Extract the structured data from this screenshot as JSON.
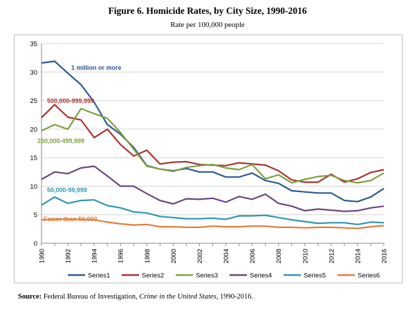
{
  "title": "Figure 6. Homicide Rates, by City Size, 1990-2016",
  "subtitle": "Rate per 100,000 people",
  "source": {
    "label": "Source:",
    "text_before": "Federal Bureau of Investigation,",
    "italic": "Crime in the United States",
    "text_after": ", 1990-2016."
  },
  "chart_data": {
    "type": "line",
    "x": [
      1990,
      1991,
      1992,
      1993,
      1994,
      1995,
      1996,
      1997,
      1998,
      1999,
      2000,
      2001,
      2002,
      2003,
      2004,
      2005,
      2006,
      2007,
      2008,
      2009,
      2010,
      2011,
      2012,
      2013,
      2014,
      2015,
      2016
    ],
    "x_tick_labels": [
      "1990",
      "1992",
      "1994",
      "1996",
      "1998",
      "2000",
      "2002",
      "2004",
      "2006",
      "2008",
      "2010",
      "2012",
      "2014",
      "2016"
    ],
    "ylim": [
      0,
      35
    ],
    "y_ticks": [
      0,
      5,
      10,
      15,
      20,
      25,
      30,
      35
    ],
    "grid": "horizontal",
    "legend_position": "bottom",
    "series": [
      {
        "name": "Series1",
        "color": "#2b5a8f",
        "annotation": "1 million or more",
        "values": [
          31.6,
          31.9,
          29.8,
          27.8,
          24.7,
          20.8,
          19.1,
          16.8,
          13.6,
          13.0,
          12.7,
          13.1,
          12.5,
          12.5,
          11.6,
          11.6,
          12.3,
          11.0,
          10.5,
          9.2,
          9.0,
          8.8,
          8.8,
          7.5,
          7.3,
          8.1,
          9.6
        ]
      },
      {
        "name": "Series2",
        "color": "#a8322f",
        "annotation": "500,000-999,999",
        "values": [
          22.0,
          24.3,
          22.1,
          21.6,
          18.5,
          20.0,
          17.3,
          15.3,
          16.3,
          13.9,
          14.2,
          14.3,
          13.8,
          13.7,
          13.6,
          14.1,
          13.9,
          13.7,
          12.7,
          11.1,
          10.7,
          10.7,
          12.1,
          10.7,
          11.3,
          12.4,
          12.9
        ]
      },
      {
        "name": "Series3",
        "color": "#7fa040",
        "annotation": "250,000-499,999",
        "values": [
          19.7,
          20.8,
          20.0,
          23.6,
          22.7,
          21.9,
          19.4,
          16.5,
          13.5,
          13.0,
          12.6,
          13.3,
          13.6,
          13.8,
          13.2,
          12.9,
          13.8,
          11.3,
          12.0,
          10.6,
          11.2,
          11.7,
          11.9,
          11.0,
          10.6,
          11.0,
          12.3
        ]
      },
      {
        "name": "Series4",
        "color": "#6a4483",
        "annotation": "",
        "values": [
          11.2,
          12.5,
          12.2,
          13.2,
          13.5,
          11.8,
          10.0,
          10.0,
          8.7,
          7.5,
          6.9,
          7.8,
          7.7,
          7.9,
          7.2,
          8.2,
          7.7,
          8.6,
          7.0,
          6.5,
          5.7,
          6.0,
          5.8,
          5.6,
          5.7,
          6.2,
          6.5
        ]
      },
      {
        "name": "Series5",
        "color": "#2f97b0",
        "annotation": "50,000-99,999",
        "values": [
          6.7,
          8.1,
          7.0,
          7.5,
          7.6,
          6.6,
          6.2,
          5.5,
          5.3,
          4.7,
          4.5,
          4.3,
          4.3,
          4.4,
          4.2,
          4.8,
          4.8,
          4.9,
          4.5,
          4.1,
          3.8,
          3.5,
          3.6,
          3.6,
          3.3,
          3.7,
          3.6
        ]
      },
      {
        "name": "Series6",
        "color": "#e07e3c",
        "annotation": "Fewer than 50,000",
        "values": [
          4.1,
          4.2,
          4.2,
          4.2,
          4.1,
          3.7,
          3.4,
          3.2,
          3.3,
          2.9,
          2.9,
          2.8,
          2.8,
          3.0,
          2.9,
          2.9,
          3.0,
          3.0,
          2.8,
          2.8,
          2.7,
          2.8,
          2.8,
          2.7,
          2.6,
          2.9,
          3.1
        ]
      }
    ]
  }
}
